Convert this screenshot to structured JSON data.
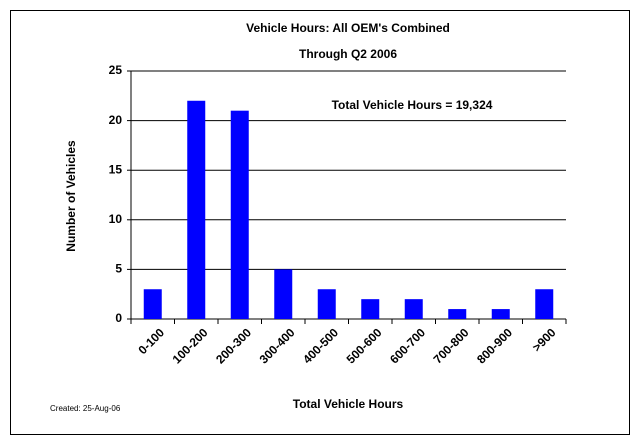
{
  "chart_data": {
    "type": "bar",
    "title": "Vehicle Hours: All OEM's Combined",
    "subtitle": "Through Q2 2006",
    "annotation": "Total Vehicle Hours = 19,324",
    "created": "Created: 25-Aug-06",
    "x_label": "Total Vehicle Hours",
    "y_label": "Number of Vehicles",
    "categories": [
      "0-100",
      "100-200",
      "200-300",
      "300-400",
      "400-500",
      "500-600",
      "600-700",
      "700-800",
      "800-900",
      ">900"
    ],
    "values": [
      3,
      22,
      21,
      5,
      3,
      2,
      2,
      1,
      1,
      3
    ],
    "color": "#0000ff",
    "ylim": [
      0,
      25
    ],
    "yticks": [
      0,
      5,
      10,
      15,
      20,
      25
    ],
    "grid": true
  }
}
